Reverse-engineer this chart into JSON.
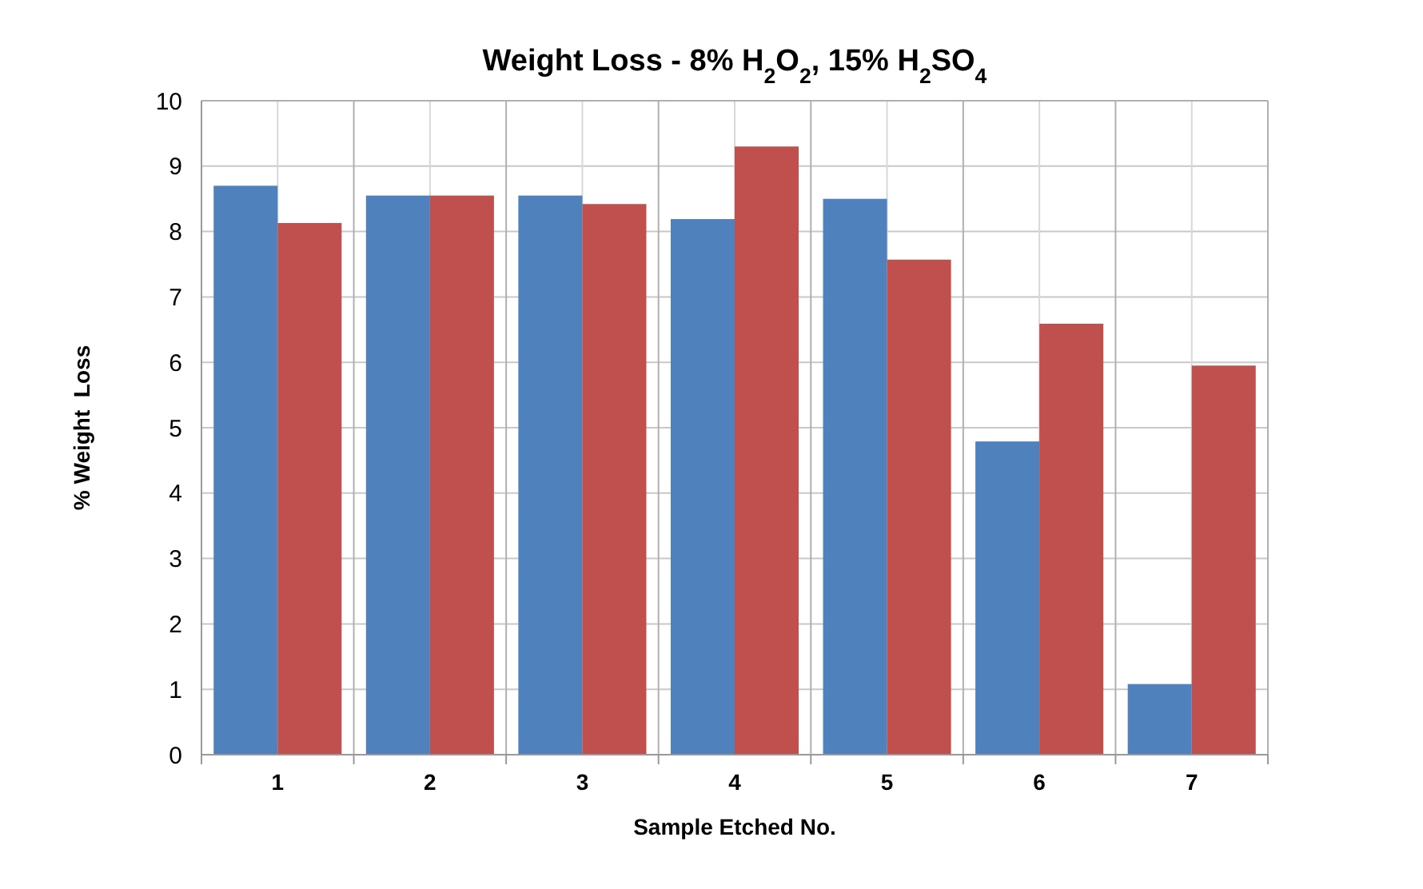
{
  "chart_data": {
    "type": "bar",
    "title": "Weight Loss - 8% H$_{2}$O$_{2}$, 15% H$_{2}$SO$_{4}$",
    "xlabel": "Sample Etched No.",
    "ylabel": "% Weight  Loss",
    "categories": [
      "1",
      "2",
      "3",
      "4",
      "5",
      "6",
      "7"
    ],
    "series": [
      {
        "color": "#4f81bd",
        "values": [
          8.7,
          8.55,
          8.55,
          8.19,
          8.5,
          4.79,
          1.08
        ]
      },
      {
        "color": "#c0504d",
        "values": [
          8.13,
          8.55,
          8.42,
          9.3,
          7.57,
          6.59,
          5.95
        ]
      }
    ],
    "ylim": [
      0,
      10
    ],
    "yticks": [
      0,
      1,
      2,
      3,
      4,
      5,
      6,
      7,
      8,
      9,
      10
    ],
    "grid": true
  }
}
